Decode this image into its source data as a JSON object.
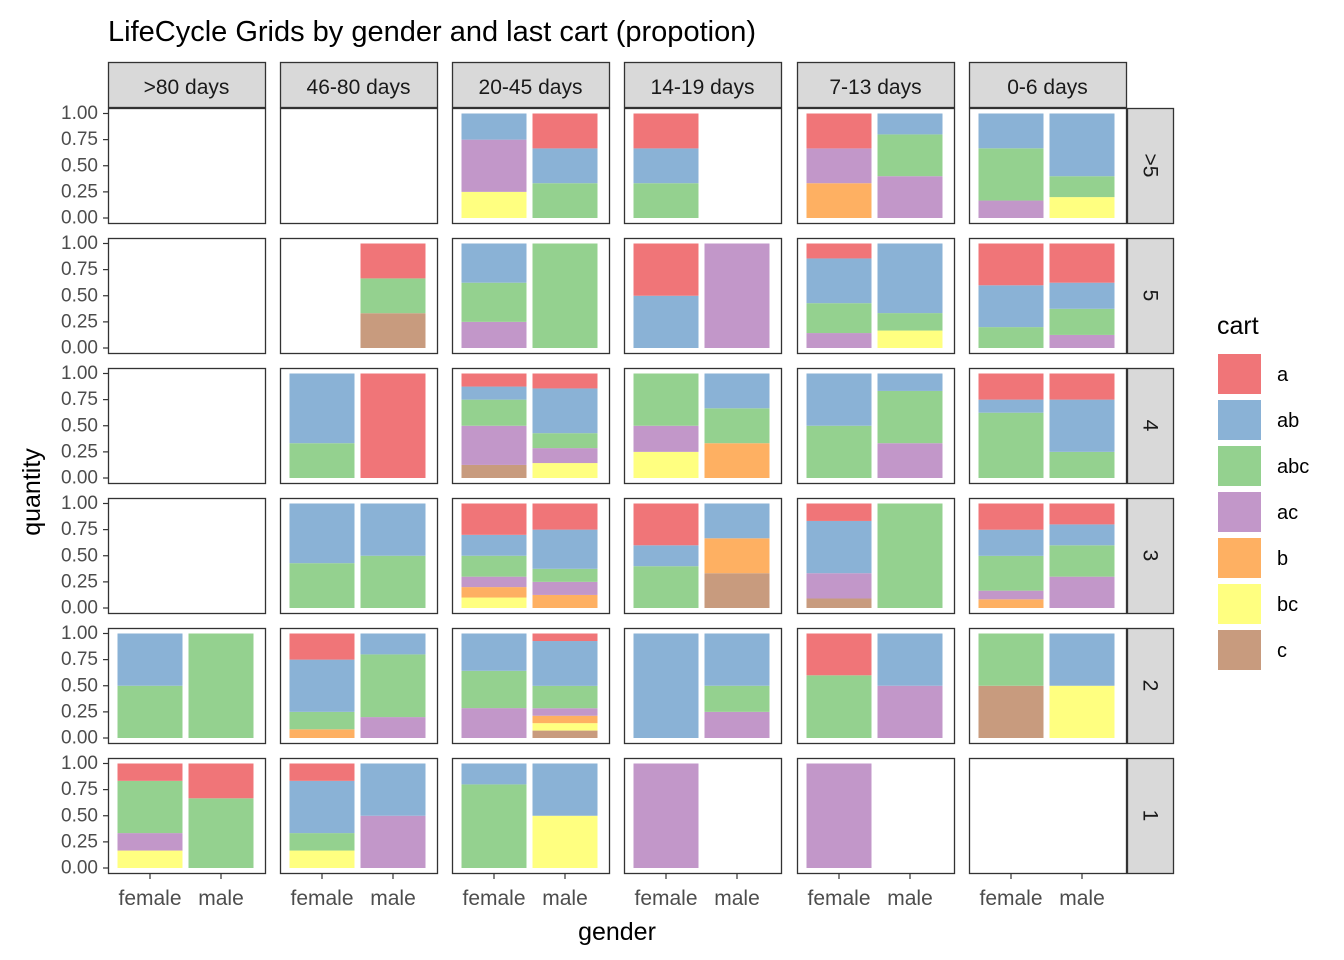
{
  "chart_data": {
    "type": "bar",
    "stacked": true,
    "facet": "grid",
    "title": "LifeCycle Grids by gender and last cart (propotion)",
    "xlabel": "gender",
    "ylabel": "quantity",
    "ylim": [
      0,
      1
    ],
    "yticks": [
      "0.00",
      "0.25",
      "0.50",
      "0.75",
      "1.00"
    ],
    "categories": [
      "female",
      "male"
    ],
    "col_labels": [
      ">80 days",
      "46-80 days",
      "20-45 days",
      "14-19 days",
      "7-13 days",
      "0-6 days"
    ],
    "row_labels": [
      ">5",
      "5",
      "4",
      "3",
      "2",
      "1"
    ],
    "legend": {
      "title": "cart",
      "position": "right",
      "items": [
        {
          "key": "a",
          "color": "#F07578"
        },
        {
          "key": "ab",
          "color": "#8AB2D6"
        },
        {
          "key": "abc",
          "color": "#94D18F"
        },
        {
          "key": "ac",
          "color": "#C297C9"
        },
        {
          "key": "b",
          "color": "#FEB062"
        },
        {
          "key": "bc",
          "color": "#FFFF80"
        },
        {
          "key": "c",
          "color": "#C89B7E"
        }
      ]
    },
    "panels": [
      [
        {
          "female": {},
          "male": {}
        },
        {
          "female": {},
          "male": {}
        },
        {
          "female": {
            "bc": 0.25,
            "ac": 0.5,
            "ab": 0.25
          },
          "male": {
            "abc": 0.333,
            "ab": 0.333,
            "a": 0.334
          }
        },
        {
          "female": {
            "abc": 0.333,
            "ab": 0.333,
            "a": 0.334
          },
          "male": {}
        },
        {
          "female": {
            "b": 0.333,
            "ac": 0.333,
            "a": 0.334
          },
          "male": {
            "ac": 0.4,
            "abc": 0.4,
            "ab": 0.2
          }
        },
        {
          "female": {
            "ac": 0.167,
            "abc": 0.5,
            "ab": 0.333
          },
          "male": {
            "bc": 0.2,
            "abc": 0.2,
            "ab": 0.6
          }
        }
      ],
      [
        {
          "female": {},
          "male": {}
        },
        {
          "female": {},
          "male": {
            "c": 0.333,
            "abc": 0.333,
            "a": 0.334
          }
        },
        {
          "female": {
            "ac": 0.25,
            "abc": 0.375,
            "ab": 0.375
          },
          "male": {
            "abc": 1.0
          }
        },
        {
          "female": {
            "ab": 0.5,
            "a": 0.5
          },
          "male": {
            "ac": 1.0
          }
        },
        {
          "female": {
            "ac": 0.143,
            "abc": 0.286,
            "ab": 0.428,
            "a": 0.143
          },
          "male": {
            "bc": 0.167,
            "abc": 0.167,
            "ab": 0.666
          }
        },
        {
          "female": {
            "abc": 0.2,
            "ab": 0.4,
            "a": 0.4
          },
          "male": {
            "ac": 0.125,
            "abc": 0.25,
            "ab": 0.25,
            "a": 0.375
          }
        }
      ],
      [
        {
          "female": {},
          "male": {}
        },
        {
          "female": {
            "abc": 0.333,
            "ab": 0.667
          },
          "male": {
            "a": 1.0
          }
        },
        {
          "female": {
            "c": 0.125,
            "ac": 0.375,
            "abc": 0.25,
            "ab": 0.125,
            "a": 0.125
          },
          "male": {
            "bc": 0.143,
            "ac": 0.143,
            "abc": 0.143,
            "ab": 0.428,
            "a": 0.143
          }
        },
        {
          "female": {
            "bc": 0.25,
            "ac": 0.25,
            "abc": 0.5
          },
          "male": {
            "b": 0.333,
            "abc": 0.334,
            "ab": 0.333
          }
        },
        {
          "female": {
            "abc": 0.5,
            "ab": 0.5
          },
          "male": {
            "ac": 0.333,
            "abc": 0.5,
            "ab": 0.167
          }
        },
        {
          "female": {
            "abc": 0.625,
            "ab": 0.125,
            "a": 0.25
          },
          "male": {
            "abc": 0.25,
            "ab": 0.5,
            "a": 0.25
          }
        }
      ],
      [
        {
          "female": {},
          "male": {}
        },
        {
          "female": {
            "abc": 0.429,
            "ab": 0.571
          },
          "male": {
            "abc": 0.5,
            "ab": 0.5
          }
        },
        {
          "female": {
            "bc": 0.1,
            "b": 0.1,
            "ac": 0.1,
            "abc": 0.2,
            "ab": 0.2,
            "a": 0.3
          },
          "male": {
            "b": 0.125,
            "ac": 0.125,
            "abc": 0.125,
            "ab": 0.375,
            "a": 0.25
          }
        },
        {
          "female": {
            "abc": 0.4,
            "ab": 0.2,
            "a": 0.4
          },
          "male": {
            "c": 0.333,
            "b": 0.334,
            "ab": 0.333
          }
        },
        {
          "female": {
            "c": 0.091,
            "ac": 0.242,
            "ab": 0.5,
            "a": 0.167
          },
          "male": {
            "abc": 1.0
          }
        },
        {
          "female": {
            "b": 0.083,
            "ac": 0.083,
            "abc": 0.333,
            "ab": 0.25,
            "a": 0.251
          },
          "male": {
            "ac": 0.3,
            "abc": 0.3,
            "ab": 0.2,
            "a": 0.2
          }
        }
      ],
      [
        {
          "female": {
            "abc": 0.5,
            "ab": 0.5
          },
          "male": {
            "abc": 1.0
          }
        },
        {
          "female": {
            "b": 0.083,
            "abc": 0.167,
            "ab": 0.5,
            "a": 0.25
          },
          "male": {
            "ac": 0.2,
            "abc": 0.6,
            "ab": 0.2
          }
        },
        {
          "female": {
            "ac": 0.286,
            "abc": 0.357,
            "ab": 0.357
          },
          "male": {
            "c": 0.071,
            "bc": 0.071,
            "b": 0.071,
            "ac": 0.072,
            "abc": 0.214,
            "ab": 0.429,
            "a": 0.072
          }
        },
        {
          "female": {
            "ab": 1.0
          },
          "male": {
            "ac": 0.25,
            "abc": 0.25,
            "ab": 0.5
          }
        },
        {
          "female": {
            "abc": 0.6,
            "a": 0.4
          },
          "male": {
            "ac": 0.5,
            "ab": 0.5
          }
        },
        {
          "female": {
            "c": 0.5,
            "abc": 0.5
          },
          "male": {
            "bc": 0.5,
            "ab": 0.5
          }
        }
      ],
      [
        {
          "female": {
            "bc": 0.167,
            "ac": 0.167,
            "abc": 0.5,
            "a": 0.166
          },
          "male": {
            "abc": 0.667,
            "a": 0.333
          }
        },
        {
          "female": {
            "bc": 0.167,
            "abc": 0.167,
            "ab": 0.5,
            "a": 0.166
          },
          "male": {
            "ac": 0.5,
            "ab": 0.5
          }
        },
        {
          "female": {
            "abc": 0.8,
            "ab": 0.2
          },
          "male": {
            "bc": 0.5,
            "ab": 0.5
          }
        },
        {
          "female": {
            "ac": 1.0
          },
          "male": {}
        },
        {
          "female": {
            "ac": 1.0
          },
          "male": {}
        },
        {
          "female": {},
          "male": {}
        }
      ]
    ]
  }
}
